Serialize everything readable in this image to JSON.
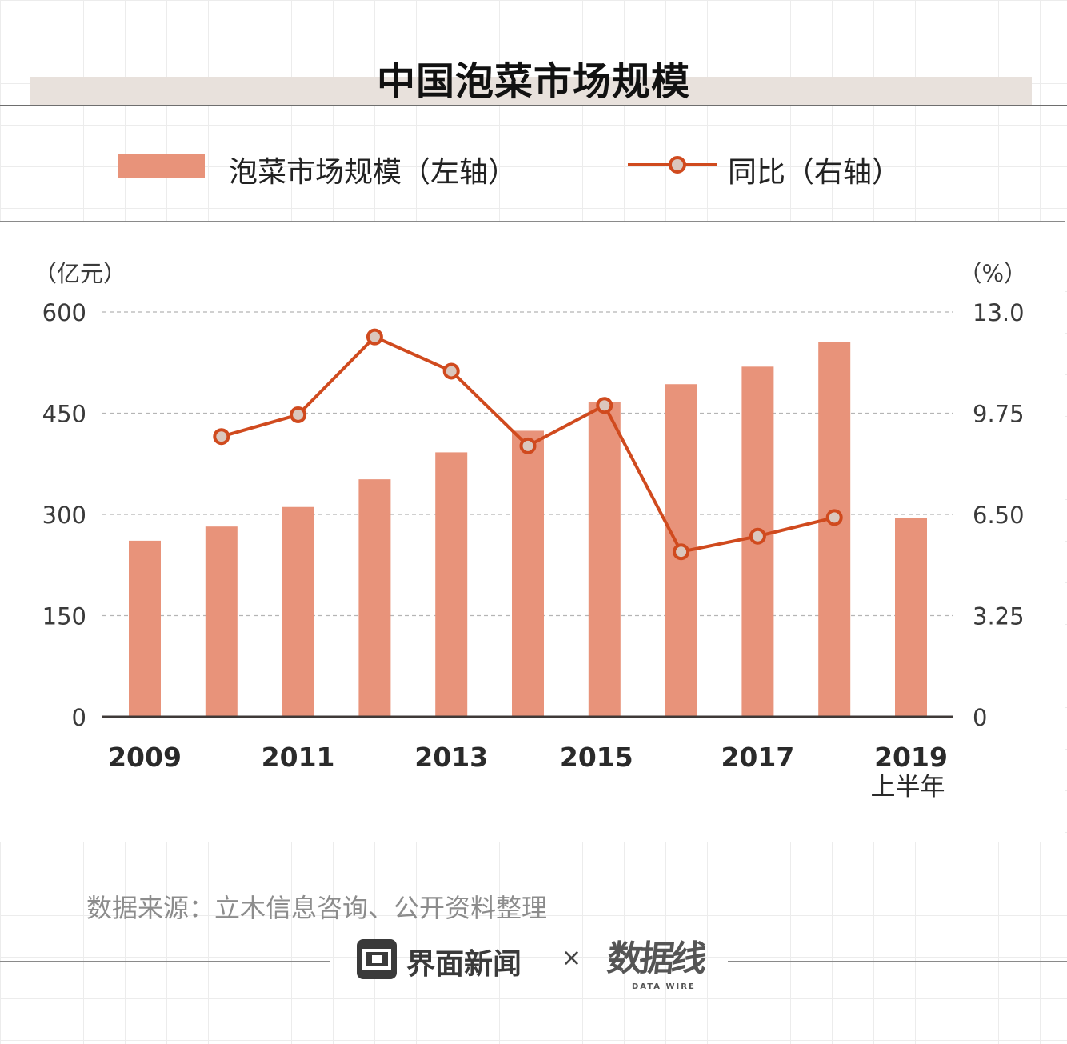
{
  "chart_data": {
    "type": "bar",
    "title": "中国泡菜市场规模",
    "categories": [
      "2009",
      "2010",
      "2011",
      "2012",
      "2013",
      "2014",
      "2015",
      "2016",
      "2017",
      "2018",
      "2019H1"
    ],
    "x_tick_labels": [
      "2009",
      "2011",
      "2013",
      "2015",
      "2017",
      "2019"
    ],
    "x_tick_sublabel": "上半年",
    "series": [
      {
        "name": "泡菜市场规模（左轴）",
        "type": "bar",
        "axis": "left",
        "color": "#e8937a",
        "values": [
          261,
          282,
          311,
          352,
          392,
          424,
          466,
          493,
          519,
          555,
          295
        ]
      },
      {
        "name": "同比（右轴）",
        "type": "line",
        "axis": "right",
        "color": "#d04a1e",
        "values": [
          null,
          9.0,
          9.7,
          12.2,
          11.1,
          8.7,
          10.0,
          5.3,
          5.8,
          6.4,
          null
        ]
      }
    ],
    "y_left": {
      "label": "（亿元）",
      "range": [
        0,
        600
      ],
      "ticks": [
        "0",
        "150",
        "300",
        "450",
        "600"
      ]
    },
    "y_right": {
      "label": "（%）",
      "range": [
        0,
        13
      ],
      "ticks": [
        "0",
        "3.25",
        "6.50",
        "9.75",
        "13.0"
      ]
    },
    "legend_position": "top",
    "grid": true
  },
  "source": "数据来源：立木信息咨询、公开资料整理",
  "footer": {
    "brand": "界面新闻",
    "separator": "×",
    "partner": "数据线",
    "partner_sub": "DATA WIRE"
  }
}
